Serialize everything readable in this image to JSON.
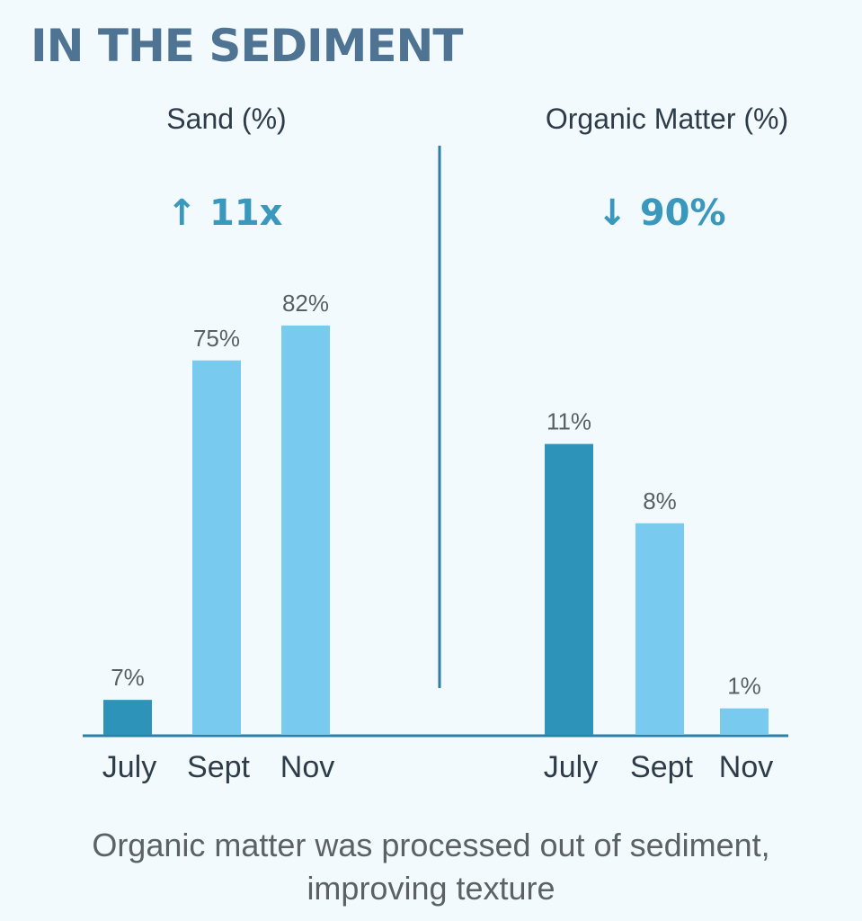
{
  "title": "IN THE SEDIMENT",
  "caption": {
    "line1": "Organic matter was processed out of sediment,",
    "line2": "improving texture"
  },
  "colors": {
    "background": "#f3fafd",
    "title": "#4f7392",
    "dark_bar": "#2e93b8",
    "light_bar": "#78cbee",
    "accent_text": "#3a98bd",
    "heading_text": "#2d3c48",
    "value_label": "#5a5f63",
    "axis": "#2e7fa6"
  },
  "chart_data": [
    {
      "type": "bar",
      "title": "Sand (%)",
      "change_text": "↑ 11x",
      "categories": [
        "July",
        "Sept",
        "Nov"
      ],
      "values": [
        7,
        75,
        82
      ],
      "value_labels": [
        "7%",
        "75%",
        "82%"
      ],
      "ylim": [
        0,
        100
      ]
    },
    {
      "type": "bar",
      "title": "Organic Matter (%)",
      "change_text": "↓ 90%",
      "categories": [
        "July",
        "Sept",
        "Nov"
      ],
      "values": [
        11,
        8,
        1
      ],
      "value_labels": [
        "11%",
        "8%",
        "1%"
      ],
      "ylim": [
        0,
        20
      ]
    }
  ]
}
